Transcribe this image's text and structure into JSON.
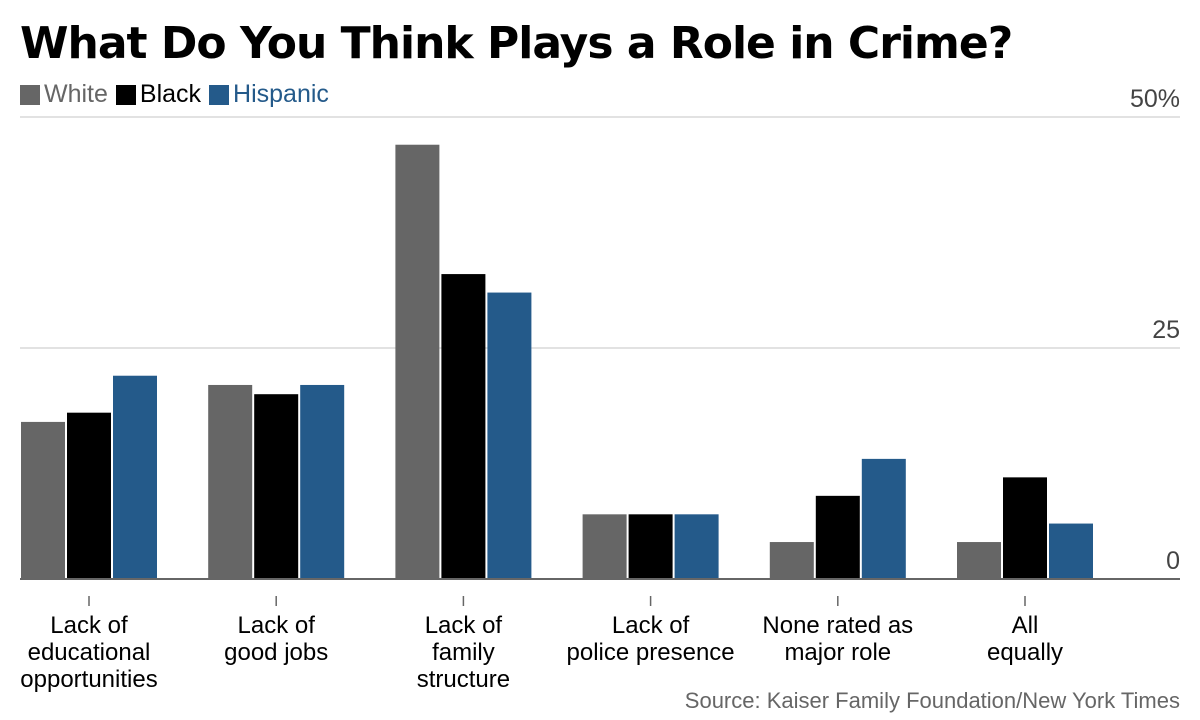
{
  "chart_data": {
    "type": "bar",
    "title": "What Do You Think Plays a Role in Crime?",
    "categories": [
      [
        "Lack of",
        "educational",
        "opportunities"
      ],
      [
        "Lack of",
        "good jobs"
      ],
      [
        "Lack of",
        "family",
        "structure"
      ],
      [
        "Lack of",
        "police presence"
      ],
      [
        "None rated as",
        "major role"
      ],
      [
        "All",
        "equally"
      ]
    ],
    "series": [
      {
        "name": "White",
        "color": "#666666",
        "values": [
          17,
          21,
          47,
          7,
          4,
          4
        ]
      },
      {
        "name": "Black",
        "color": "#000000",
        "values": [
          18,
          20,
          33,
          7,
          9,
          11
        ]
      },
      {
        "name": "Hispanic",
        "color": "#245a8a",
        "values": [
          22,
          21,
          31,
          7,
          13,
          6
        ]
      }
    ],
    "ylim": [
      0,
      50
    ],
    "yticks": [
      {
        "value": 0,
        "label": "0"
      },
      {
        "value": 25,
        "label": "25"
      },
      {
        "value": 50,
        "label": "50%"
      }
    ],
    "grid": true,
    "legend_position": "top-left",
    "source": "Source: Kaiser Family Foundation/New York Times"
  }
}
